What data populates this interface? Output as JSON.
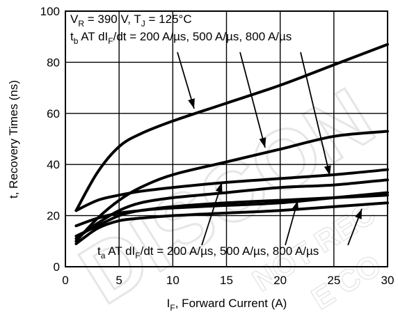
{
  "chart_data": {
    "type": "line",
    "title": "",
    "xlabel": {
      "main": "I",
      "sub": "F",
      "rest": ", Forward Current (A)"
    },
    "ylabel": "t, Recovery Times (ns)",
    "xlim": [
      0,
      30
    ],
    "ylim": [
      0,
      100
    ],
    "x_ticks": [
      "0",
      "5",
      "10",
      "15",
      "20",
      "25",
      "30"
    ],
    "y_ticks": [
      "0",
      "20",
      "40",
      "60",
      "80",
      "100"
    ],
    "grid": true,
    "annotation_top": {
      "line1": {
        "a": "V",
        "a_sub": "R",
        "b": " = 390 V, T",
        "b_sub": "J",
        "c": " = 125°C"
      },
      "line2": {
        "a": "t",
        "a_sub": "b",
        "b": " AT dI",
        "b_sub": "F",
        "c": "/dt = 200 A/µs, 500 A/µs, 800 A/µs"
      }
    },
    "annotation_bottom": {
      "a": "t",
      "a_sub": "a",
      "b": " AT dI",
      "b_sub": "F",
      "c": "/dt = 200 A/µs, 500 A/µs, 800 A/µs"
    },
    "watermark": {
      "main": "DISCON",
      "small1": "NOT REC",
      "small2": "E CO"
    },
    "series": [
      {
        "x": [
          1,
          3,
          5,
          7,
          10,
          15,
          20,
          25,
          30
        ],
        "values": [
          22,
          37,
          47,
          52,
          57,
          64,
          71,
          79,
          87
        ]
      },
      {
        "x": [
          1,
          3,
          5,
          7,
          10,
          15,
          20,
          25,
          30
        ],
        "values": [
          10,
          19,
          26,
          31,
          36,
          41,
          46,
          51,
          53
        ]
      },
      {
        "x": [
          1,
          3,
          5,
          7,
          10,
          15,
          20,
          25,
          30
        ],
        "values": [
          22,
          26,
          28,
          29.5,
          31,
          33,
          34.5,
          36,
          38
        ]
      },
      {
        "x": [
          1,
          3,
          5,
          7,
          10,
          15,
          20,
          25,
          30
        ],
        "values": [
          11,
          17,
          22,
          25,
          27,
          29,
          31,
          32,
          34
        ]
      },
      {
        "x": [
          1,
          3,
          5,
          7,
          10,
          15,
          20,
          25,
          30
        ],
        "values": [
          16,
          19,
          21,
          22,
          23.5,
          25,
          26,
          27,
          28
        ]
      },
      {
        "x": [
          1,
          3,
          5,
          7,
          10,
          15,
          20,
          25,
          30
        ],
        "values": [
          12,
          16,
          20,
          22,
          23,
          24,
          25,
          27,
          29
        ]
      },
      {
        "x": [
          1,
          3,
          5,
          7,
          10,
          15,
          20,
          25,
          30
        ],
        "values": [
          9,
          15,
          18,
          19,
          20,
          21,
          22,
          23.5,
          25
        ]
      }
    ]
  }
}
